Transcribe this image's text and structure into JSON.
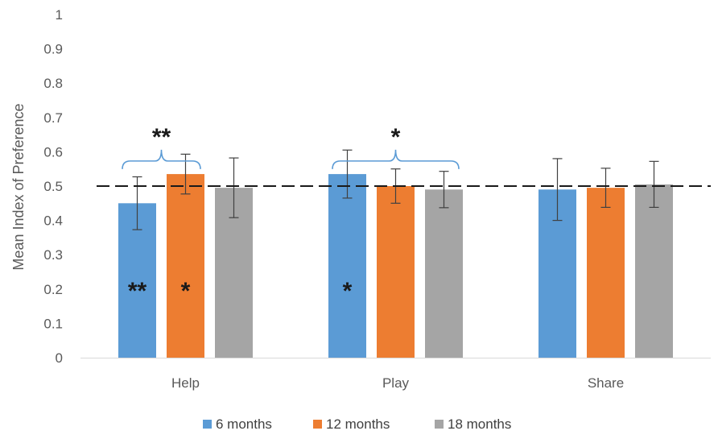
{
  "chart_data": {
    "type": "bar",
    "title": "",
    "xlabel": "",
    "ylabel": "Mean Index of Preference",
    "ylim": [
      0,
      1
    ],
    "yticks": [
      0,
      0.1,
      0.2,
      0.3,
      0.4,
      0.5,
      0.6,
      0.7,
      0.8,
      0.9,
      1
    ],
    "ytick_labels": [
      "0",
      "0.1",
      "0.2",
      "0.3",
      "0.4",
      "0.5",
      "0.6",
      "0.7",
      "0.8",
      "0.9",
      "1"
    ],
    "grid": false,
    "categories": [
      "Help",
      "Play",
      "Share"
    ],
    "series": [
      {
        "name": "6 months",
        "color": "#5B9BD5",
        "values": [
          0.45,
          0.535,
          0.49
        ],
        "error": [
          0.077,
          0.07,
          0.09
        ]
      },
      {
        "name": "12 months",
        "color": "#ED7D31",
        "values": [
          0.535,
          0.5,
          0.495
        ],
        "error": [
          0.058,
          0.05,
          0.057
        ]
      },
      {
        "name": "18 months",
        "color": "#A5A5A5",
        "values": [
          0.495,
          0.49,
          0.505
        ],
        "error": [
          0.087,
          0.053,
          0.067
        ]
      }
    ],
    "reference_line": {
      "y": 0.5,
      "style": "dashed"
    },
    "legend": {
      "position": "bottom"
    },
    "annotations": [
      {
        "text": "**",
        "category": "Help",
        "series": "6 months",
        "kind": "in-bar",
        "y": 0.2
      },
      {
        "text": "*",
        "category": "Help",
        "series": "12 months",
        "kind": "in-bar",
        "y": 0.2
      },
      {
        "text": "*",
        "category": "Play",
        "series": "6 months",
        "kind": "in-bar",
        "y": 0.2
      },
      {
        "text": "**",
        "category": "Help",
        "kind": "bracket",
        "from_series": "6 months",
        "to_series": "12 months",
        "y": 0.62
      },
      {
        "text": "*",
        "category": "Play",
        "kind": "bracket",
        "from_series": "6 months",
        "to_series": "18 months",
        "y": 0.62
      }
    ]
  }
}
